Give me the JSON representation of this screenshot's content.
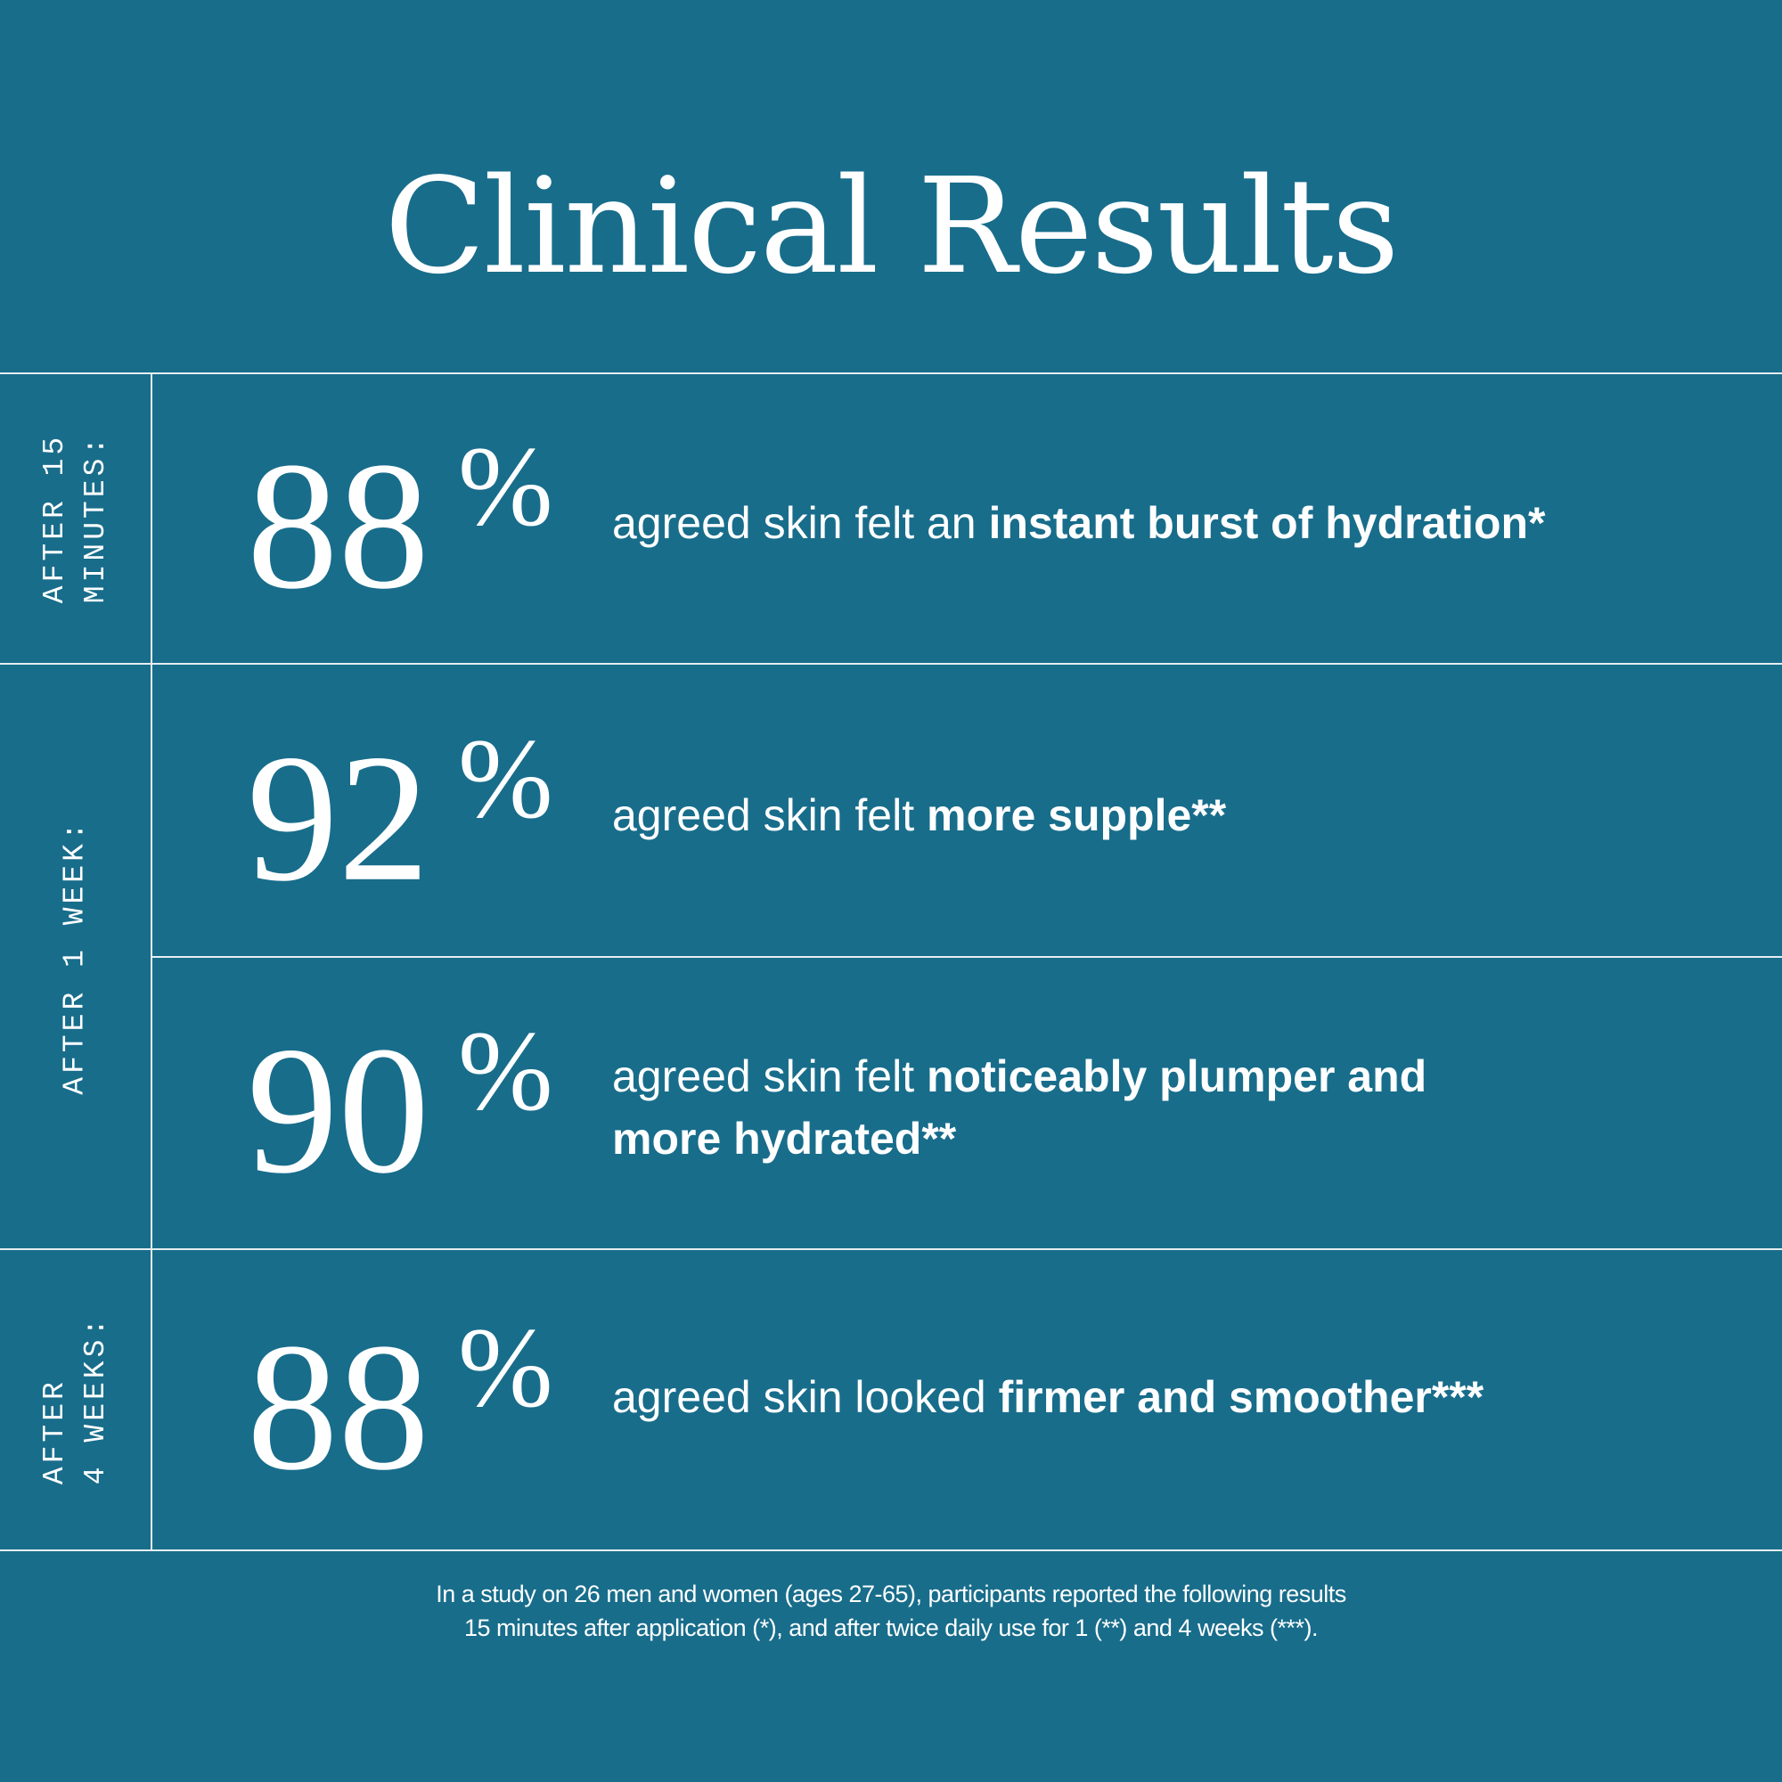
{
  "title": "Clinical Results",
  "background_color": "#186d8b",
  "periods": [
    {
      "label": "AFTER 15\nMINUTES:"
    },
    {
      "label": "AFTER 1 WEEK:"
    },
    {
      "label": "AFTER\n4 WEEKS:"
    }
  ],
  "results": [
    {
      "value": "88",
      "unit": "%",
      "text": "agreed skin felt an ",
      "bold": "instant burst of hydration",
      "mark": "*"
    },
    {
      "value": "92",
      "unit": "%",
      "text": "agreed skin felt ",
      "bold": "more supple",
      "mark": "**"
    },
    {
      "value": "90",
      "unit": "%",
      "text": "agreed skin felt ",
      "bold": "noticeably plumper and more hydrated",
      "mark": "**"
    },
    {
      "value": "88",
      "unit": "%",
      "text": "agreed skin looked ",
      "bold": "firmer and smoother",
      "mark": "***"
    }
  ],
  "footnote": {
    "line1": "In a study on 26 men and women (ages 27-65), participants reported the following results",
    "line2": "15 minutes after application (*), and after twice daily use for 1 (**) and 4 weeks (***)."
  }
}
